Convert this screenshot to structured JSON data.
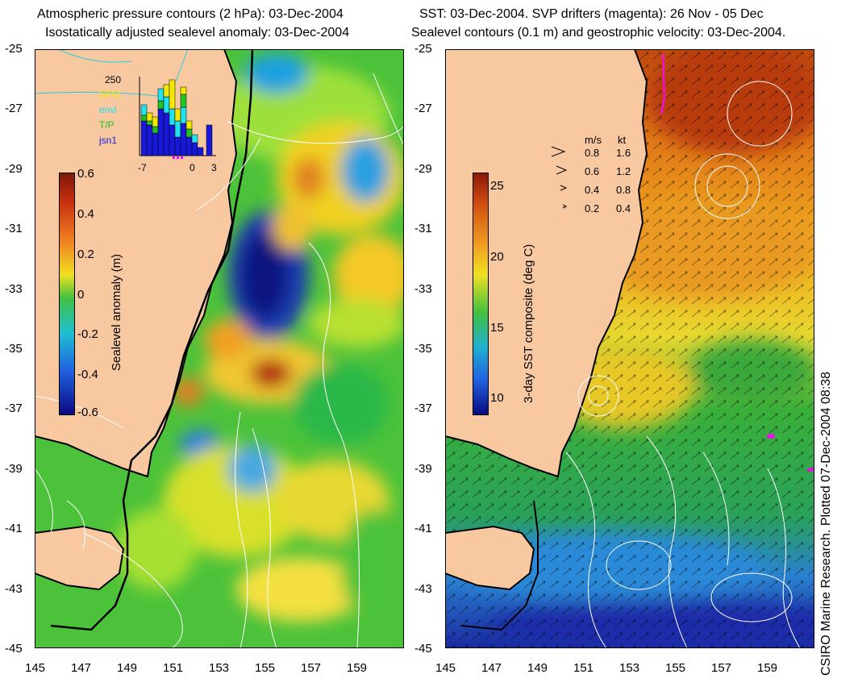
{
  "left_panel": {
    "title_line1": "Atmospheric pressure contours (2 hPa): 03-Dec-2004",
    "title_line2": "Isostatically adjusted sealevel anomaly: 03-Dec-2004",
    "colorbar": {
      "label": "Sealevel anomaly (m)",
      "ticks": [
        "0.6",
        "0.4",
        "0.2",
        "0",
        "-0.2",
        "-0.4",
        "-0.6"
      ]
    },
    "inset": {
      "ymax_label": "250",
      "legend": [
        {
          "name": "GFO",
          "color": "#f5e800"
        },
        {
          "name": "envi",
          "color": "#22e0ee"
        },
        {
          "name": "T/P",
          "color": "#22c422"
        },
        {
          "name": "jsn1",
          "color": "#1818d8"
        }
      ],
      "x_ticks": [
        "-7",
        "0",
        "3"
      ]
    }
  },
  "right_panel": {
    "title_line1": "SST: 03-Dec-2004. SVP drifters (magenta): 26 Nov - 05 Dec",
    "title_line2": "Sealevel contours (0.1 m) and geostrophic velocity: 03-Dec-2004.",
    "colorbar": {
      "label": "3-day SST composite (deg C)",
      "ticks": [
        "25",
        "20",
        "15",
        "10"
      ]
    },
    "velocity_legend": {
      "header_ms": "m/s",
      "header_kt": "kt",
      "rows": [
        {
          "ms": "0.8",
          "kt": "1.6"
        },
        {
          "ms": "0.6",
          "kt": "1.2"
        },
        {
          "ms": "0.4",
          "kt": "0.8"
        },
        {
          "ms": "0.2",
          "kt": "0.4"
        }
      ]
    },
    "credit": "CSIRO Marine Research. Plotted 07-Dec-2004 08:38"
  },
  "axes": {
    "lat_ticks": [
      "-25",
      "-27",
      "-29",
      "-31",
      "-33",
      "-35",
      "-37",
      "-39",
      "-41",
      "-43",
      "-45"
    ],
    "lon_ticks": [
      "145",
      "147",
      "149",
      "151",
      "153",
      "155",
      "157",
      "159"
    ]
  },
  "colors": {
    "land": "#f8c8a0",
    "coast": "#000000",
    "contour": "#ffffff",
    "drifter": "#ff00ff"
  }
}
